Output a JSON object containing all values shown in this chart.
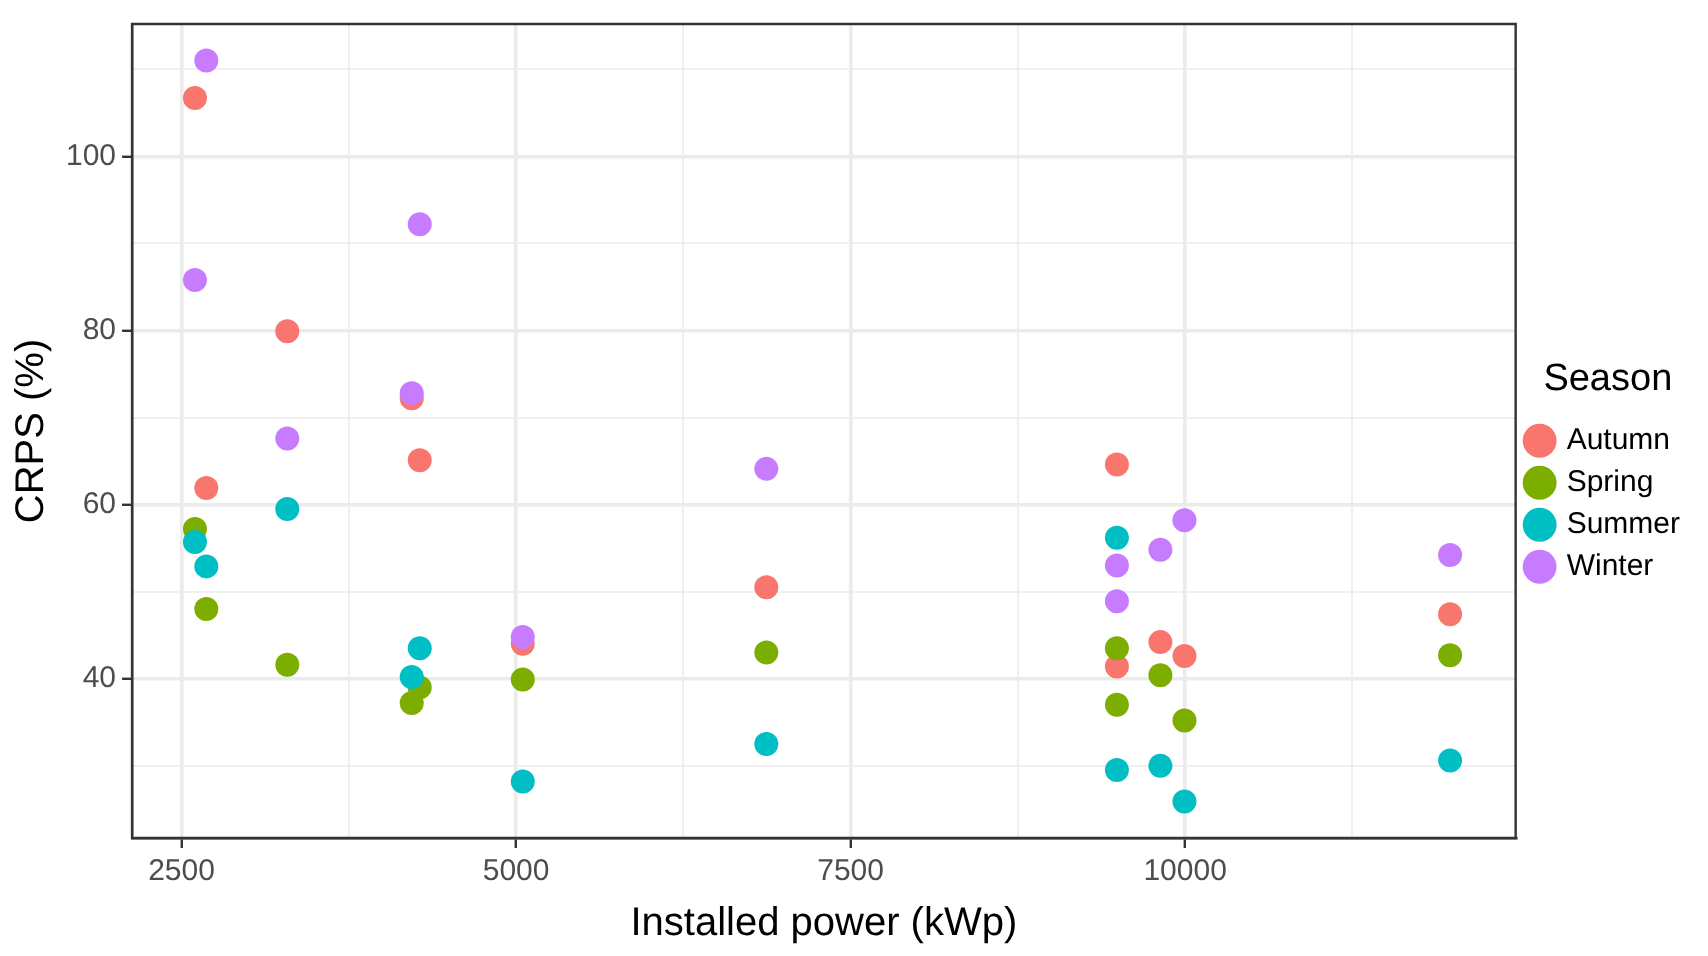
{
  "chart_data": {
    "type": "scatter",
    "xlabel": "Installed power (kWp)",
    "ylabel": "CRPS (%)",
    "legend_title": "Season",
    "legend": "right",
    "grid": true,
    "marker": "circle",
    "xlim": [
      2130,
      12470
    ],
    "ylim": [
      21.7,
      115.2
    ],
    "xticks": [
      2500,
      {
        "value": 3750,
        "label": null
      },
      5000,
      {
        "value": 6250,
        "label": null
      },
      7500,
      {
        "value": 8750,
        "label": null
      },
      10000,
      {
        "value": 11250,
        "label": null
      }
    ],
    "yticks": [
      {
        "value": 30,
        "label": null
      },
      40,
      {
        "value": 50,
        "label": null
      },
      60,
      {
        "value": 70,
        "label": null
      },
      80,
      {
        "value": 90,
        "label": null
      },
      100,
      {
        "value": 110,
        "label": null
      }
    ],
    "x": [
      2600,
      2685,
      3290,
      4220,
      4280,
      5050,
      6870,
      9490,
      9490,
      9815,
      9995,
      11980
    ],
    "series": [
      {
        "name": "Autumn",
        "color": "#f8766d",
        "values": [
          106.7,
          61.9,
          79.9,
          72.2,
          65.1,
          44.0,
          50.5,
          64.6,
          41.4,
          44.2,
          42.6,
          47.4
        ]
      },
      {
        "name": "Spring",
        "color": "#7cae00",
        "values": [
          57.2,
          48.0,
          41.6,
          37.2,
          39.0,
          39.9,
          43.0,
          43.5,
          37.0,
          40.4,
          35.2,
          42.7
        ]
      },
      {
        "name": "Summer",
        "color": "#00bfc4",
        "values": [
          55.7,
          52.9,
          59.5,
          40.2,
          43.5,
          28.2,
          32.5,
          56.2,
          29.5,
          30.0,
          25.9,
          30.6
        ]
      },
      {
        "name": "Winter",
        "color": "#c77cff",
        "values": [
          85.8,
          111.0,
          67.6,
          72.8,
          92.2,
          44.8,
          64.1,
          53.0,
          48.9,
          54.8,
          58.2,
          54.2
        ]
      }
    ]
  }
}
